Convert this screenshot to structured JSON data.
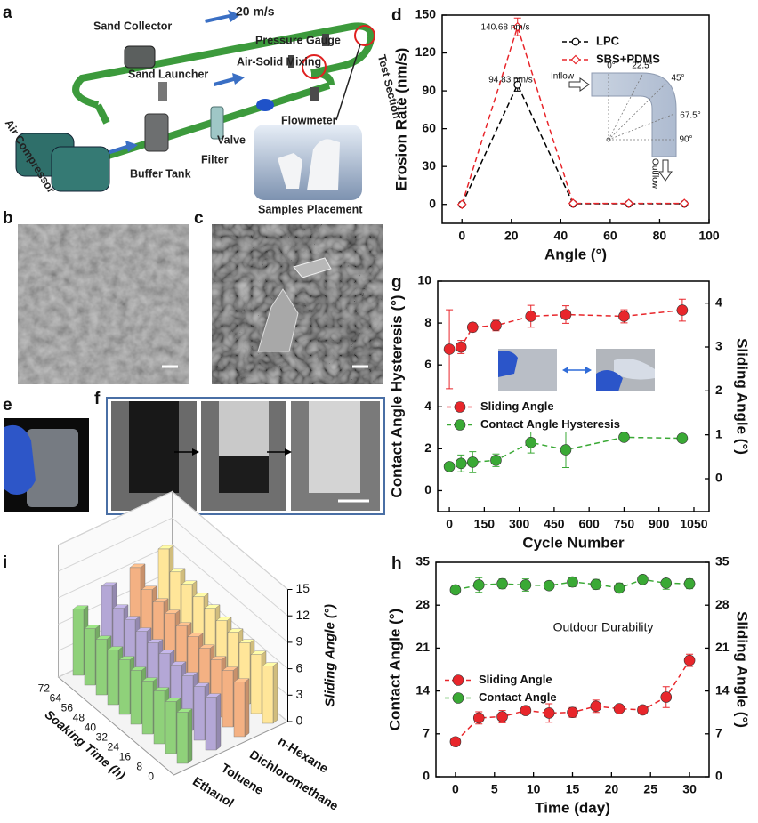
{
  "panel_labels": [
    "a",
    "b",
    "c",
    "d",
    "e",
    "f",
    "g",
    "h",
    "i"
  ],
  "schematic": {
    "speed": "20 m/s",
    "labels": [
      "Sand Collector",
      "Pressure Gauge",
      "Air-Solid Mixing",
      "Sand Launcher",
      "Test Section",
      "Flowmeter",
      "Valve",
      "Filter",
      "Buffer Tank",
      "Air Compressor",
      "Samples Placement"
    ]
  },
  "chart_data": [
    {
      "type": "line",
      "xlabel": "Angle (°)",
      "ylabel": "Erosion Rate (nm/s)",
      "x": [
        0,
        22.5,
        45,
        67.5,
        90
      ],
      "xlim": [
        -8,
        100
      ],
      "xticks": [
        0,
        20,
        40,
        60,
        80,
        100
      ],
      "ylim": [
        -15,
        150
      ],
      "yticks": [
        0,
        30,
        60,
        90,
        120,
        150
      ],
      "legend": "upper right",
      "filled": false,
      "series": [
        {
          "name": "LPC",
          "color": "#000000",
          "marker": "circle",
          "values": [
            0,
            94.83,
            0.5,
            0.5,
            0.5
          ],
          "errors": [
            0,
            5,
            0,
            0,
            0
          ]
        },
        {
          "name": "SBS+PDMS",
          "color": "#e8262b",
          "marker": "diamond",
          "values": [
            0,
            140.68,
            0.8,
            0.8,
            0.8
          ],
          "errors": [
            0,
            7,
            0,
            0,
            0
          ]
        }
      ],
      "annotations": [
        "140.68 nm/s",
        "94.83 nm/s"
      ],
      "inset_labels": [
        "Inflow",
        "0°",
        "22.5°",
        "45°",
        "67.5°",
        "90°",
        "Outflow"
      ]
    },
    {
      "type": "line",
      "xlabel": "Cycle Number",
      "ylabel": "Contact Angle Hysteresis (°)",
      "y2label": "Sliding Angle (°)",
      "x": [
        0,
        50,
        100,
        200,
        350,
        500,
        750,
        1000
      ],
      "xlim": [
        -50,
        1115
      ],
      "xticks": [
        0,
        150,
        300,
        450,
        600,
        750,
        900,
        1050
      ],
      "ylim": [
        -1,
        10
      ],
      "yticks": [
        0,
        2,
        4,
        6,
        8,
        10
      ],
      "y2lim": [
        -0.75,
        4.5
      ],
      "y2ticks": [
        0,
        1,
        2,
        3,
        4
      ],
      "legend": "center left",
      "filled": true,
      "series": [
        {
          "name": "Sliding Angle",
          "color": "#e8262b",
          "axis": "y2",
          "marker": "circle",
          "values": [
            2.95,
            3.0,
            3.45,
            3.49,
            3.7,
            3.74,
            3.7,
            3.84
          ],
          "errors": [
            0.9,
            0.15,
            0.1,
            0.12,
            0.25,
            0.2,
            0.15,
            0.25
          ]
        },
        {
          "name": "Contact Angle Hysteresis",
          "color": "#3aa935",
          "marker": "circle",
          "values": [
            1.15,
            1.3,
            1.36,
            1.45,
            2.3,
            1.95,
            2.55,
            2.5
          ],
          "errors": [
            0.15,
            0.4,
            0.5,
            0.3,
            0.5,
            0.85,
            0.1,
            0.15
          ]
        }
      ]
    },
    {
      "type": "line",
      "xlabel": "Time (day)",
      "ylabel": "Contact Angle (°)",
      "y2label": "Sliding Angle (°)",
      "x": [
        0,
        3,
        6,
        9,
        12,
        15,
        18,
        21,
        24,
        27,
        30
      ],
      "xlim": [
        -2.5,
        32.5
      ],
      "xticks": [
        0,
        5,
        10,
        15,
        20,
        25,
        30
      ],
      "ylim": [
        0,
        35
      ],
      "yticks": [
        0,
        7,
        14,
        21,
        28,
        35
      ],
      "y2lim": [
        0,
        35
      ],
      "y2ticks": [
        0,
        7,
        14,
        21,
        28,
        35
      ],
      "legend": "center left",
      "filled": true,
      "annotations": [
        "Outdoor Durability"
      ],
      "series": [
        {
          "name": "Sliding Angle",
          "color": "#e8262b",
          "axis": "y2",
          "marker": "circle",
          "values": [
            5.7,
            9.6,
            9.8,
            10.8,
            10.4,
            10.5,
            11.5,
            11.1,
            10.9,
            13,
            19
          ],
          "errors": [
            0.3,
            1,
            1,
            0.5,
            1.5,
            0.8,
            1,
            0.5,
            0.5,
            1.7,
            1
          ]
        },
        {
          "name": "Contact Angle",
          "color": "#3aa935",
          "marker": "circle",
          "values": [
            30.5,
            31.3,
            31.5,
            31.3,
            31.2,
            31.8,
            31.4,
            30.8,
            32.2,
            31.6,
            31.5
          ],
          "errors": [
            0.5,
            1.2,
            0.8,
            1,
            0.6,
            0.8,
            0.8,
            0.8,
            0.5,
            1,
            0.8
          ]
        }
      ]
    },
    {
      "type": "bar3d",
      "ylabel": "Soaking Time (h)",
      "zlabel": "Sliding Angle (°)",
      "categories": [
        0,
        8,
        16,
        24,
        32,
        40,
        48,
        56,
        64,
        72
      ],
      "zlim": [
        0,
        15
      ],
      "zticks": [
        0,
        3,
        6,
        9,
        12,
        15
      ],
      "series": [
        {
          "name": "Ethanol",
          "color": "#8fd17a",
          "values": [
            5.8,
            5.9,
            6,
            6,
            6.1,
            6.2,
            6.2,
            6.3,
            6.4,
            7.5
          ]
        },
        {
          "name": "Toluene",
          "color": "#b4a7d6",
          "values": [
            6,
            6.1,
            6.2,
            6.3,
            6.5,
            6.6,
            6.8,
            7,
            7.2,
            8.6
          ]
        },
        {
          "name": "Dichloromethane",
          "color": "#f4b183",
          "values": [
            6.2,
            6.4,
            6.5,
            6.7,
            6.9,
            7,
            7.3,
            7.5,
            7.8,
            9.2
          ]
        },
        {
          "name": "n-Hexane",
          "color": "#ffe699",
          "values": [
            6.5,
            6.7,
            6.9,
            7,
            7.2,
            7.5,
            7.7,
            8,
            8.3,
            9.8
          ]
        }
      ]
    }
  ]
}
